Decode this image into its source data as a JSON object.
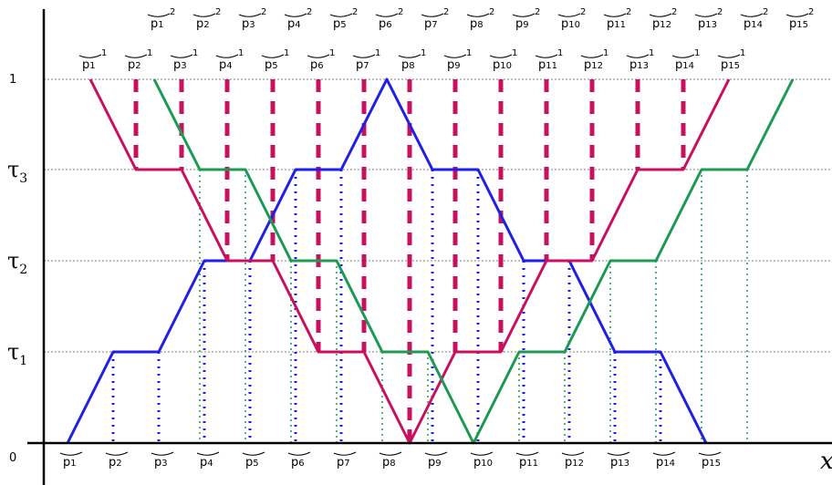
{
  "diagram": {
    "y_levels": [
      {
        "key": "zero",
        "label": "0",
        "value": 0
      },
      {
        "key": "tau1",
        "label": "τ",
        "sub": "1",
        "value": 0.33
      },
      {
        "key": "tau2",
        "label": "τ",
        "sub": "2",
        "value": 0.66
      },
      {
        "key": "tau3",
        "label": "τ",
        "sub": "3",
        "value": 0.99
      },
      {
        "key": "one",
        "label": "1",
        "value": 1.32
      }
    ],
    "x_axis_label": "x",
    "bottom_labels": [
      "p1",
      "p2",
      "p3",
      "p4",
      "p5",
      "p6",
      "p7",
      "p8",
      "p9",
      "p10",
      "p11",
      "p12",
      "p13",
      "p14",
      "p15"
    ],
    "top_labels_row1": {
      "base": [
        "p1",
        "p2",
        "p3",
        "p4",
        "p5",
        "p6",
        "p7",
        "p8",
        "p9",
        "p10",
        "p11",
        "p12",
        "p13",
        "p14",
        "p15"
      ],
      "sup": "1"
    },
    "top_labels_row2": {
      "base": [
        "p1",
        "p2",
        "p3",
        "p4",
        "p5",
        "p6",
        "p7",
        "p8",
        "p9",
        "p10",
        "p11",
        "p12",
        "p13",
        "p14",
        "p15"
      ],
      "sup": "2"
    },
    "colors": {
      "blue": "#1f1fe6",
      "magenta": "#c8105f",
      "green": "#1e9a55",
      "axis": "#000000",
      "grid": "#555555"
    },
    "series": [
      {
        "key": "blue",
        "color": "blue"
      },
      {
        "key": "magenta",
        "color": "magenta"
      },
      {
        "key": "green",
        "color": "green"
      }
    ]
  }
}
